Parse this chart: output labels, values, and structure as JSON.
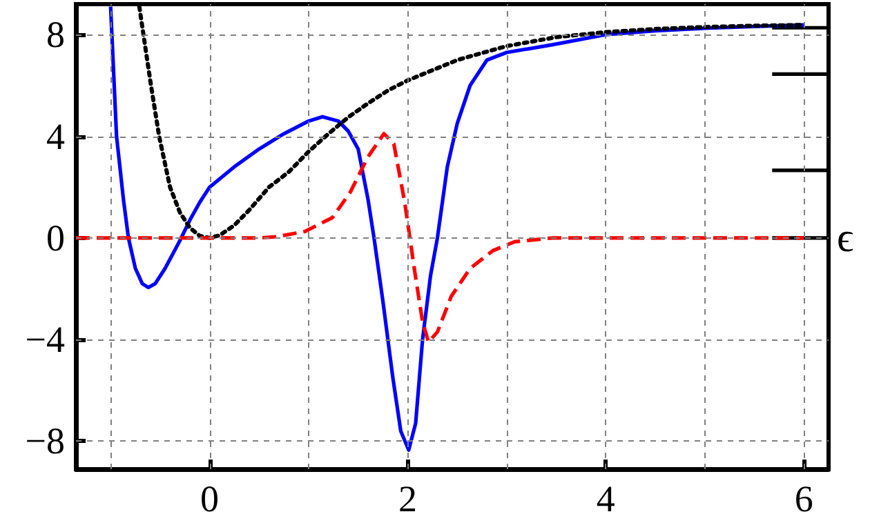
{
  "chart_data": {
    "type": "line",
    "xlim": [
      -1.35,
      6.25
    ],
    "ylim": [
      -9.1,
      9.2
    ],
    "xticks": [
      {
        "value": -1,
        "label": null
      },
      0,
      {
        "value": 1,
        "label": null
      },
      2,
      {
        "value": 3,
        "label": null
      },
      4,
      {
        "value": 5,
        "label": null
      },
      6
    ],
    "yticks": [
      {
        "value": -8,
        "label": "−8"
      },
      {
        "value": -4,
        "label": "−4"
      },
      0,
      4,
      8
    ],
    "grid": true,
    "marker": "none",
    "annotations": [
      {
        "text": "ϵ",
        "x": 6.25,
        "y": 0
      }
    ],
    "series": [
      {
        "color": "#0000ff",
        "line_style": "solid",
        "x": [
          -1.0,
          -0.94,
          -0.87,
          -0.82,
          -0.75,
          -0.68,
          -0.62,
          -0.55,
          -0.45,
          -0.3,
          -0.2,
          -0.1,
          0,
          0.25,
          0.5,
          0.75,
          1.0,
          1.14,
          1.3,
          1.4,
          1.5,
          1.54,
          1.6,
          1.66,
          1.75,
          1.85,
          1.93,
          2.01,
          2.08,
          2.15,
          2.23,
          2.3,
          2.4,
          2.5,
          2.63,
          2.8,
          3.0,
          3.46,
          4.0,
          4.5,
          5.0,
          5.5,
          6.0
        ],
        "values": [
          9.1,
          4,
          1.5,
          0,
          -1.2,
          -1.8,
          -1.95,
          -1.8,
          -1.2,
          -0.1,
          0.7,
          1.4,
          2.0,
          2.8,
          3.5,
          4.1,
          4.6,
          4.77,
          4.6,
          4.2,
          3.5,
          2.7,
          1.5,
          0,
          -2.5,
          -5.5,
          -7.6,
          -8.35,
          -7.3,
          -4,
          -1.5,
          0,
          2.8,
          4.5,
          6.0,
          7.0,
          7.3,
          7.6,
          8.0,
          8.15,
          8.25,
          8.32,
          8.38
        ]
      },
      {
        "color": "#000000",
        "line_style": "dotted",
        "x": [
          -0.71,
          -0.6,
          -0.51,
          -0.4,
          -0.3,
          -0.2,
          -0.1,
          0,
          0.1,
          0.25,
          0.4,
          0.6,
          0.8,
          1.0,
          1.2,
          1.4,
          1.6,
          1.8,
          2.0,
          2.5,
          3.0,
          3.5,
          4.0,
          4.5,
          5.0,
          5.5,
          6.0
        ],
        "values": [
          9.1,
          6.2,
          4,
          2,
          1.0,
          0.4,
          0.08,
          0,
          0.1,
          0.5,
          1.1,
          2.0,
          2.6,
          3.4,
          4.1,
          4.75,
          5.3,
          5.8,
          6.2,
          7.0,
          7.55,
          7.9,
          8.1,
          8.22,
          8.3,
          8.35,
          8.38
        ]
      },
      {
        "color": "#ff0000",
        "line_style": "dashed",
        "x": [
          -1.35,
          0.5,
          0.68,
          0.96,
          1.24,
          1.42,
          1.6,
          1.76,
          1.86,
          1.97,
          2.07,
          2.15,
          2.21,
          2.3,
          2.44,
          2.63,
          2.86,
          3.08,
          3.46,
          6.0
        ],
        "values": [
          0,
          0,
          0.05,
          0.25,
          0.8,
          1.8,
          3.2,
          4.1,
          3.7,
          1.4,
          -1.3,
          -3.3,
          -4.1,
          -3.7,
          -2.3,
          -1.2,
          -0.5,
          -0.15,
          0,
          0
        ]
      },
      {
        "color": "#000000",
        "line_style": "solid",
        "x": [
          5.68,
          6.25
        ],
        "values": [
          8.27,
          8.27
        ]
      },
      {
        "color": "#000000",
        "line_style": "solid",
        "x": [
          5.68,
          6.25
        ],
        "values": [
          6.45,
          6.45
        ]
      },
      {
        "color": "#000000",
        "line_style": "solid",
        "x": [
          5.68,
          6.25
        ],
        "values": [
          2.66,
          2.66
        ]
      },
      {
        "color": "#000000",
        "line_style": "solid",
        "x": [
          5.68,
          6.25
        ],
        "values": [
          0,
          0
        ]
      }
    ]
  }
}
